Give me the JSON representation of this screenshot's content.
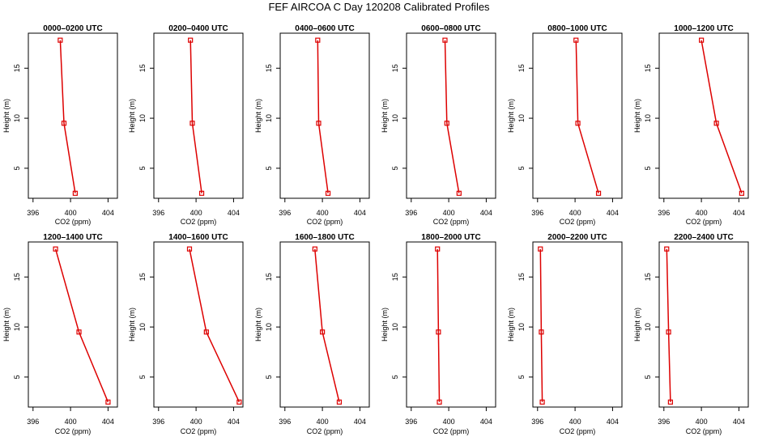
{
  "page": {
    "title": "FEF AIRCOA C  Day 120208  Calibrated Profiles"
  },
  "colors": {
    "series": "#dd0000",
    "axis": "#000000"
  },
  "chart_data": [
    {
      "type": "line",
      "title": "0000–0200 UTC",
      "xlabel": "CO2 (ppm)",
      "ylabel": "Height (m)",
      "xlim": [
        395.5,
        405
      ],
      "ylim": [
        2,
        18.5
      ],
      "xticks": [
        396,
        400,
        404
      ],
      "yticks": [
        5,
        10,
        15
      ],
      "x": [
        398.9,
        399.3,
        400.5
      ],
      "y": [
        17.8,
        9.5,
        2.5
      ]
    },
    {
      "type": "line",
      "title": "0200–0400 UTC",
      "xlabel": "CO2 (ppm)",
      "ylabel": "Height (m)",
      "xlim": [
        395.5,
        405
      ],
      "ylim": [
        2,
        18.5
      ],
      "xticks": [
        396,
        400,
        404
      ],
      "yticks": [
        5,
        10,
        15
      ],
      "x": [
        399.4,
        399.6,
        400.6
      ],
      "y": [
        17.8,
        9.5,
        2.5
      ]
    },
    {
      "type": "line",
      "title": "0400–0600 UTC",
      "xlabel": "CO2 (ppm)",
      "ylabel": "Height (m)",
      "xlim": [
        395.5,
        405
      ],
      "ylim": [
        2,
        18.5
      ],
      "xticks": [
        396,
        400,
        404
      ],
      "yticks": [
        5,
        10,
        15
      ],
      "x": [
        399.5,
        399.6,
        400.6
      ],
      "y": [
        17.8,
        9.5,
        2.5
      ]
    },
    {
      "type": "line",
      "title": "0600–0800 UTC",
      "xlabel": "CO2 (ppm)",
      "ylabel": "Height (m)",
      "xlim": [
        395.5,
        405
      ],
      "ylim": [
        2,
        18.5
      ],
      "xticks": [
        396,
        400,
        404
      ],
      "yticks": [
        5,
        10,
        15
      ],
      "x": [
        399.6,
        399.8,
        401.1
      ],
      "y": [
        17.8,
        9.5,
        2.5
      ]
    },
    {
      "type": "line",
      "title": "0800–1000 UTC",
      "xlabel": "CO2 (ppm)",
      "ylabel": "Height (m)",
      "xlim": [
        395.5,
        405
      ],
      "ylim": [
        2,
        18.5
      ],
      "xticks": [
        396,
        400,
        404
      ],
      "yticks": [
        5,
        10,
        15
      ],
      "x": [
        400.1,
        400.3,
        402.5
      ],
      "y": [
        17.8,
        9.5,
        2.5
      ]
    },
    {
      "type": "line",
      "title": "1000–1200 UTC",
      "xlabel": "CO2 (ppm)",
      "ylabel": "Height (m)",
      "xlim": [
        395.5,
        405
      ],
      "ylim": [
        2,
        18.5
      ],
      "xticks": [
        396,
        400,
        404
      ],
      "yticks": [
        5,
        10,
        15
      ],
      "x": [
        400.0,
        401.6,
        404.3
      ],
      "y": [
        17.8,
        9.5,
        2.5
      ]
    },
    {
      "type": "line",
      "title": "1200–1400 UTC",
      "xlabel": "CO2 (ppm)",
      "ylabel": "Height (m)",
      "xlim": [
        395.5,
        405
      ],
      "ylim": [
        2,
        18.5
      ],
      "xticks": [
        396,
        400,
        404
      ],
      "yticks": [
        5,
        10,
        15
      ],
      "x": [
        398.4,
        400.9,
        404.0
      ],
      "y": [
        17.8,
        9.5,
        2.5
      ]
    },
    {
      "type": "line",
      "title": "1400–1600 UTC",
      "xlabel": "CO2 (ppm)",
      "ylabel": "Height (m)",
      "xlim": [
        395.5,
        405
      ],
      "ylim": [
        2,
        18.5
      ],
      "xticks": [
        396,
        400,
        404
      ],
      "yticks": [
        5,
        10,
        15
      ],
      "x": [
        399.3,
        401.1,
        404.6
      ],
      "y": [
        17.8,
        9.5,
        2.5
      ]
    },
    {
      "type": "line",
      "title": "1600–1800 UTC",
      "xlabel": "CO2 (ppm)",
      "ylabel": "Height (m)",
      "xlim": [
        395.5,
        405
      ],
      "ylim": [
        2,
        18.5
      ],
      "xticks": [
        396,
        400,
        404
      ],
      "yticks": [
        5,
        10,
        15
      ],
      "x": [
        399.2,
        400.0,
        401.8
      ],
      "y": [
        17.8,
        9.5,
        2.5
      ]
    },
    {
      "type": "line",
      "title": "1800–2000 UTC",
      "xlabel": "CO2 (ppm)",
      "ylabel": "Height (m)",
      "xlim": [
        395.5,
        405
      ],
      "ylim": [
        2,
        18.5
      ],
      "xticks": [
        396,
        400,
        404
      ],
      "yticks": [
        5,
        10,
        15
      ],
      "x": [
        398.8,
        398.9,
        399.0
      ],
      "y": [
        17.8,
        9.5,
        2.5
      ]
    },
    {
      "type": "line",
      "title": "2000–2200 UTC",
      "xlabel": "CO2 (ppm)",
      "ylabel": "Height (m)",
      "xlim": [
        395.5,
        405
      ],
      "ylim": [
        2,
        18.5
      ],
      "xticks": [
        396,
        400,
        404
      ],
      "yticks": [
        5,
        10,
        15
      ],
      "x": [
        396.3,
        396.4,
        396.5
      ],
      "y": [
        17.8,
        9.5,
        2.5
      ]
    },
    {
      "type": "line",
      "title": "2200–2400 UTC",
      "xlabel": "CO2 (ppm)",
      "ylabel": "Height (m)",
      "xlim": [
        395.5,
        405
      ],
      "ylim": [
        2,
        18.5
      ],
      "xticks": [
        396,
        400,
        404
      ],
      "yticks": [
        5,
        10,
        15
      ],
      "x": [
        396.3,
        396.5,
        396.7
      ],
      "y": [
        17.8,
        9.5,
        2.5
      ]
    }
  ]
}
